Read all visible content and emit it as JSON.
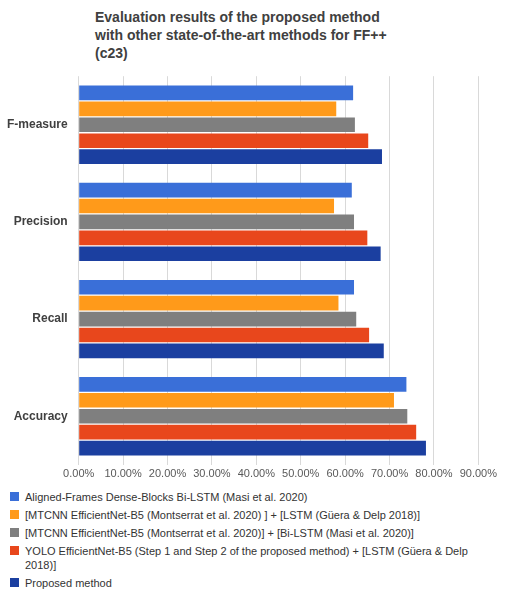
{
  "chart_data": {
    "type": "bar",
    "orientation": "horizontal",
    "title": "Evaluation results of the proposed method with other state-of-the-art methods for FF++ (c23)",
    "categories": [
      "F-measure",
      "Precision",
      "Recall",
      "Accuracy"
    ],
    "series": [
      {
        "name": "Aligned-Frames Dense-Blocks Bi-LSTM (Masi et al. 2020)",
        "color": "#3A6FD8",
        "values": [
          61.8,
          61.5,
          62.0,
          73.8
        ]
      },
      {
        "name": "[MTCNN EfficientNet-B5 (Montserrat et al. 2020) ] + [LSTM (Güera & Delp 2018)]",
        "color": "#FF9A1A",
        "values": [
          58.0,
          57.5,
          58.5,
          71.0
        ]
      },
      {
        "name": "[MTCNN EfficientNet-B5  (Montserrat et al. 2020)] + [Bi-LSTM (Masi et al. 2020)]",
        "color": "#7F7F7F",
        "values": [
          62.2,
          62.0,
          62.5,
          74.0
        ]
      },
      {
        "name": "YOLO EfficientNet-B5 (Step 1 and Step 2 of the proposed method)  + [LSTM (Güera & Delp 2018)]",
        "color": "#E8471C",
        "values": [
          65.2,
          65.0,
          65.4,
          76.0
        ]
      },
      {
        "name": "Proposed method",
        "color": "#1B3FA0",
        "values": [
          68.3,
          68.0,
          68.7,
          78.2
        ]
      }
    ],
    "xlim": [
      0,
      90
    ],
    "xticks": [
      {
        "value": 0,
        "label": "0.00%"
      },
      {
        "value": 10,
        "label": "10.00%"
      },
      {
        "value": 20,
        "label": "20.00%"
      },
      {
        "value": 30,
        "label": "30.00%"
      },
      {
        "value": 40,
        "label": "40.00%"
      },
      {
        "value": 50,
        "label": "50.00%"
      },
      {
        "value": 60,
        "label": "60.00%"
      },
      {
        "value": 70,
        "label": "70.00%"
      },
      {
        "value": 80,
        "label": "80.00%"
      },
      {
        "value": 90,
        "label": "90.00%"
      }
    ],
    "grid": true,
    "legend": "bottom"
  }
}
